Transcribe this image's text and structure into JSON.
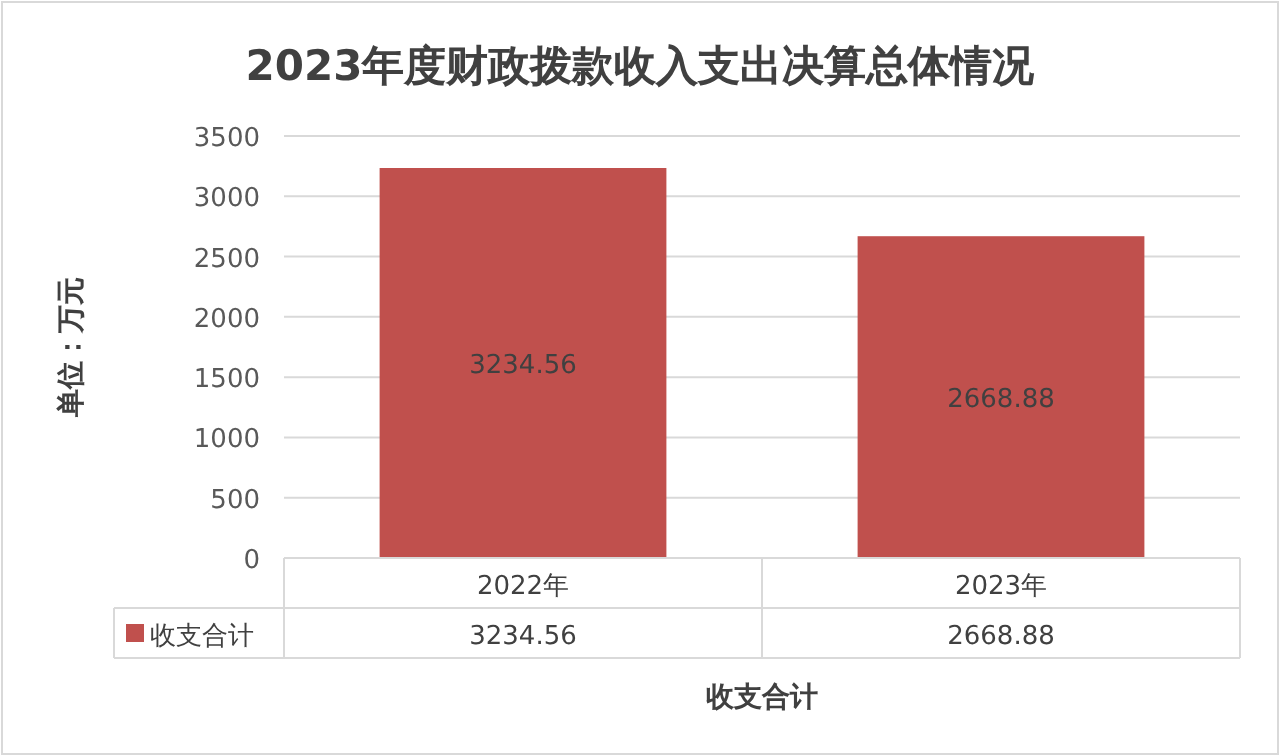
{
  "chart_data": {
    "type": "bar",
    "title": "2023年度财政拨款收入支出决算总体情况",
    "ylabel": "单位：万元",
    "xlabel": "收支合计",
    "categories": [
      "2022年",
      "2023年"
    ],
    "series": [
      {
        "name": "收支合计",
        "color": "#c0504d",
        "values": [
          3234.56,
          2668.88
        ],
        "value_labels": [
          "3234.56",
          "2668.88"
        ]
      }
    ],
    "ylim": [
      0,
      3500
    ],
    "yticks": [
      0,
      500,
      1000,
      1500,
      2000,
      2500,
      3000,
      3500
    ],
    "grid": "y",
    "legend": "bottom",
    "data_labels": true,
    "annotations": [
      "3234.56",
      "2668.88"
    ]
  }
}
